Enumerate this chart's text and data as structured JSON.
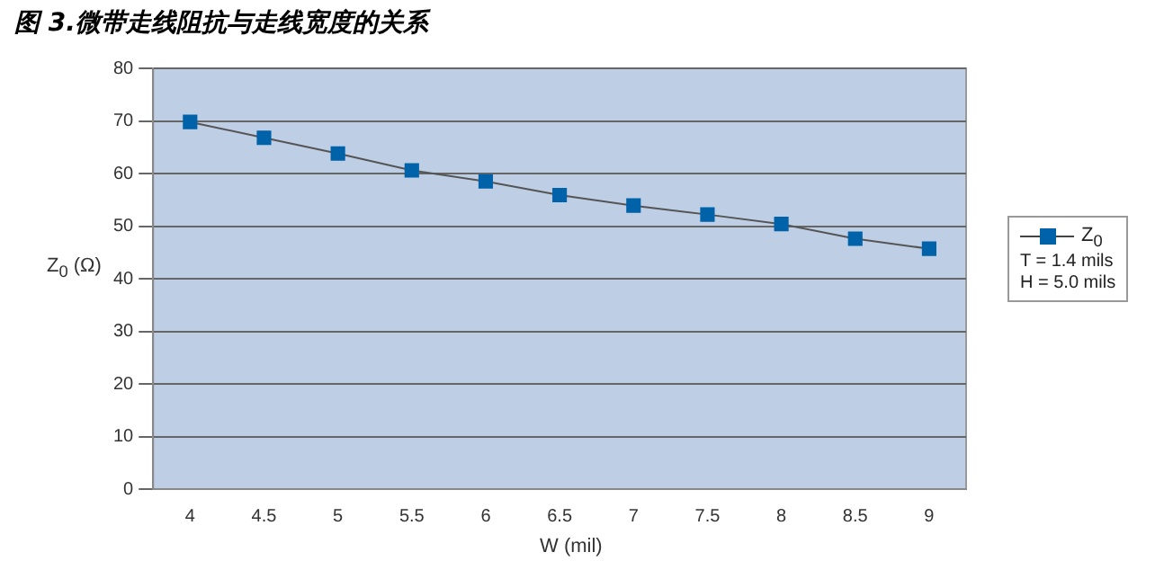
{
  "chart_data": {
    "type": "line",
    "title": "图 3.微带走线阻抗与走线宽度的关系",
    "xlabel": "W (mil)",
    "ylabel": "Z$_{0}$ (Ω)",
    "categories": [
      "4",
      "4.5",
      "5",
      "5.5",
      "6",
      "6.5",
      "7",
      "7.5",
      "8",
      "8.5",
      "9"
    ],
    "series": [
      {
        "name": "Z$_{0}$",
        "color": "#0062a8",
        "values": [
          69.8,
          66.8,
          63.8,
          60.6,
          58.5,
          55.9,
          53.9,
          52.2,
          50.4,
          47.6,
          45.7
        ]
      }
    ],
    "ylim": [
      0,
      80
    ],
    "yticks": [
      0,
      10,
      20,
      30,
      40,
      50,
      60,
      70,
      80
    ],
    "grid": "y",
    "legend": "right",
    "marker": "square",
    "line_style": "solid",
    "annotations": [
      "T = 1.4 mils",
      "H = 5.0 mils"
    ]
  }
}
